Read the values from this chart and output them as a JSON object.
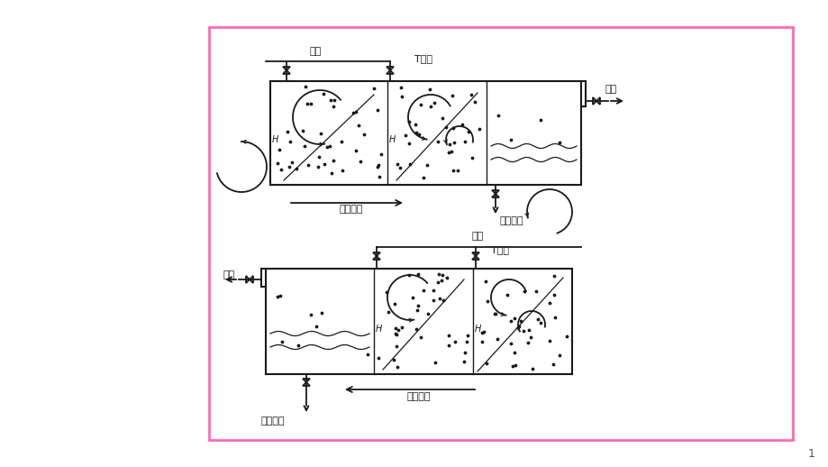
{
  "bg_color": "#ffffff",
  "border_color": "#ff69b4",
  "line_color": "#1a1a1a",
  "fig_width": 9.2,
  "fig_height": 5.18,
  "dpi": 100,
  "label_inwater_top": "进水",
  "label_T_top": "T时后",
  "label_outwater_top": "出水",
  "label_leftright": "由左至右",
  "label_sludge_top": "剰余污泥",
  "label_inwater_bot": "进水",
  "label_T_bot": "T时后",
  "label_outwater_bot": "出水",
  "label_rightleft": "由右至左",
  "label_sludge_bot": "剰余污泥",
  "page_number": "1"
}
